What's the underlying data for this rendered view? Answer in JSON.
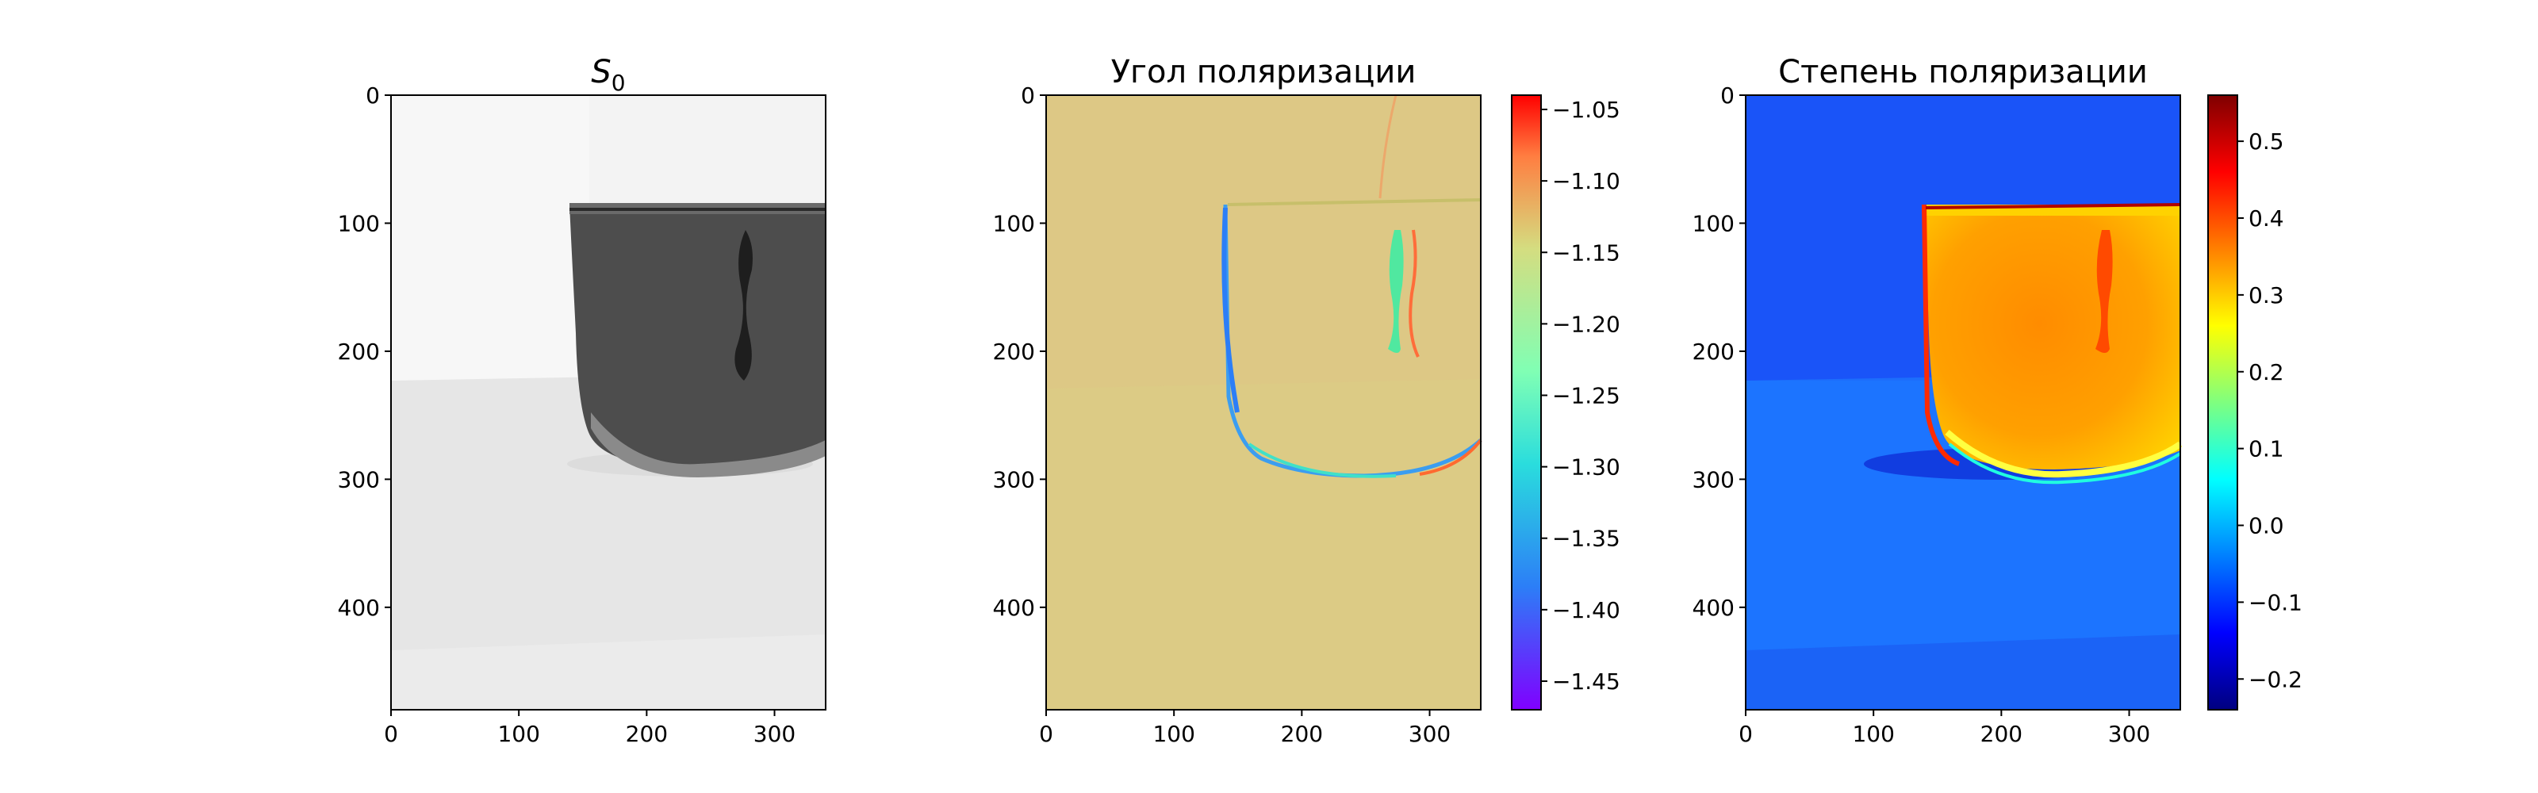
{
  "chart_data": [
    {
      "type": "heatmap",
      "title": "S",
      "title_subscript": "0",
      "colormap": "gray",
      "x": {
        "lim": [
          0,
          340
        ],
        "ticks": [
          0,
          100,
          200,
          300
        ],
        "tick_labels": [
          "0",
          "100",
          "200",
          "300"
        ]
      },
      "y": {
        "lim": [
          0,
          480
        ],
        "inverted": true,
        "ticks": [
          0,
          100,
          200,
          300,
          400
        ],
        "tick_labels": [
          "0",
          "100",
          "200",
          "300",
          "400"
        ]
      },
      "image": {
        "background_value": 0.95,
        "cup_value": 0.35,
        "content": "dark cup on light background"
      }
    },
    {
      "type": "heatmap",
      "title": "Угол поляризации",
      "colormap": "rainbow",
      "x": {
        "lim": [
          0,
          340
        ],
        "ticks": [
          0,
          100,
          200,
          300
        ],
        "tick_labels": [
          "0",
          "100",
          "200",
          "300"
        ]
      },
      "y": {
        "lim": [
          0,
          480
        ],
        "inverted": true,
        "ticks": [
          0,
          100,
          200,
          300,
          400
        ],
        "tick_labels": [
          "0",
          "100",
          "200",
          "300",
          "400"
        ]
      },
      "colorbar": {
        "range": [
          -1.47,
          -1.04
        ],
        "ticks": [
          -1.05,
          -1.1,
          -1.15,
          -1.2,
          -1.25,
          -1.3,
          -1.35,
          -1.4,
          -1.45
        ],
        "tick_labels": [
          "−1.05",
          "−1.10",
          "−1.15",
          "−1.20",
          "−1.25",
          "−1.30",
          "−1.35",
          "−1.40",
          "−1.45"
        ]
      },
      "image": {
        "background_value": -1.17,
        "edge_left_value": -1.4,
        "edge_right_value": -1.08
      }
    },
    {
      "type": "heatmap",
      "title": "Степень поляризации",
      "colormap": "jet",
      "x": {
        "lim": [
          0,
          340
        ],
        "ticks": [
          0,
          100,
          200,
          300
        ],
        "tick_labels": [
          "0",
          "100",
          "200",
          "300"
        ]
      },
      "y": {
        "lim": [
          0,
          480
        ],
        "inverted": true,
        "ticks": [
          0,
          100,
          200,
          300,
          400
        ],
        "tick_labels": [
          "0",
          "100",
          "200",
          "300",
          "400"
        ]
      },
      "colorbar": {
        "range": [
          -0.24,
          0.56
        ],
        "ticks": [
          0.5,
          0.4,
          0.3,
          0.2,
          0.1,
          0.0,
          -0.1,
          -0.2
        ],
        "tick_labels": [
          "0.5",
          "0.4",
          "0.3",
          "0.2",
          "0.1",
          "0.0",
          "−0.1",
          "−0.2"
        ]
      },
      "image": {
        "background_value": -0.05,
        "cup_value": 0.38,
        "cup_rim_value": 0.5
      }
    }
  ]
}
